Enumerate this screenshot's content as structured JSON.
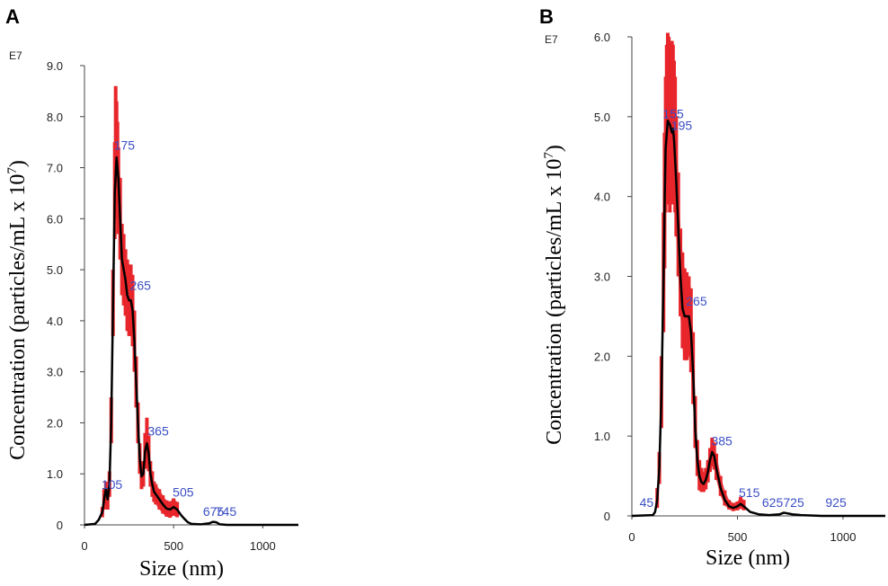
{
  "chart_data": [
    {
      "type": "line",
      "panel_label": "A",
      "exponent_label": "E7",
      "xlabel": "Size (nm)",
      "ylabel": "Concentration (particles/mL x 10",
      "ylabel_sup": "7",
      "ylabel_close": ")",
      "xlim": [
        0,
        1200
      ],
      "ylim": [
        0,
        9.0
      ],
      "xticks": [
        0,
        500,
        1000
      ],
      "xtick_labels": [
        "0",
        "500",
        "1000"
      ],
      "yticks": [
        0,
        1,
        2,
        3,
        4,
        5,
        6,
        7,
        8,
        9
      ],
      "ytick_labels": [
        "0",
        "1.0",
        "2.0",
        "3.0",
        "4.0",
        "5.0",
        "6.0",
        "7.0",
        "8.0",
        "9.0"
      ],
      "series": [
        {
          "name": "mean",
          "color": "#000000",
          "x": [
            0,
            60,
            80,
            100,
            110,
            120,
            130,
            140,
            150,
            160,
            170,
            180,
            190,
            200,
            210,
            220,
            230,
            240,
            250,
            260,
            270,
            280,
            290,
            300,
            310,
            320,
            330,
            340,
            350,
            360,
            370,
            380,
            390,
            400,
            420,
            440,
            460,
            480,
            500,
            520,
            540,
            560,
            580,
            600,
            650,
            700,
            720,
            740,
            760,
            800,
            1000,
            1200
          ],
          "y": [
            0,
            0.02,
            0.1,
            0.25,
            0.5,
            0.7,
            0.5,
            0.8,
            2.0,
            4.3,
            6.5,
            7.2,
            6.8,
            6.0,
            5.2,
            5.0,
            4.8,
            4.5,
            4.4,
            4.4,
            4.2,
            3.6,
            2.8,
            2.0,
            1.3,
            0.95,
            1.0,
            1.45,
            1.6,
            1.4,
            1.0,
            0.8,
            0.65,
            0.6,
            0.5,
            0.4,
            0.32,
            0.3,
            0.35,
            0.3,
            0.2,
            0.12,
            0.05,
            0.02,
            0.01,
            0.03,
            0.06,
            0.05,
            0.01,
            0,
            0,
            0
          ]
        },
        {
          "name": "error",
          "color": "#e8262a",
          "x": [
            100,
            110,
            120,
            130,
            140,
            150,
            160,
            170,
            175,
            180,
            185,
            190,
            200,
            210,
            220,
            230,
            240,
            250,
            260,
            270,
            280,
            290,
            300,
            310,
            320,
            330,
            340,
            350,
            360,
            370,
            380,
            390,
            400,
            420,
            440,
            460,
            480,
            500,
            520
          ],
          "lo": [
            0.15,
            0.3,
            0.4,
            0.3,
            0.55,
            1.6,
            3.7,
            5.6,
            6.2,
            6.3,
            6.0,
            5.7,
            5.2,
            4.5,
            4.3,
            4.1,
            3.8,
            3.7,
            3.7,
            3.5,
            3.0,
            2.3,
            1.6,
            1.0,
            0.7,
            0.75,
            1.1,
            1.2,
            1.05,
            0.75,
            0.55,
            0.45,
            0.4,
            0.3,
            0.22,
            0.16,
            0.14,
            0.18,
            0.15
          ],
          "hi": [
            0.35,
            0.7,
            0.85,
            0.7,
            1.05,
            2.5,
            5.0,
            7.5,
            8.6,
            8.3,
            7.9,
            7.4,
            6.8,
            5.9,
            5.7,
            5.4,
            5.2,
            5.1,
            5.1,
            4.9,
            4.2,
            3.3,
            2.4,
            1.6,
            1.2,
            1.25,
            1.8,
            2.1,
            1.75,
            1.25,
            1.05,
            0.85,
            0.8,
            0.7,
            0.58,
            0.48,
            0.46,
            0.52,
            0.45
          ]
        }
      ],
      "peak_labels": [
        {
          "text": "105",
          "x": 105,
          "y": 0.65
        },
        {
          "text": "175",
          "x": 175,
          "y": 7.3
        },
        {
          "text": "265",
          "x": 265,
          "y": 4.55
        },
        {
          "text": "365",
          "x": 365,
          "y": 1.7
        },
        {
          "text": "505",
          "x": 505,
          "y": 0.5
        },
        {
          "text": "675",
          "x": 675,
          "y": 0.12
        },
        {
          "text": "745",
          "x": 745,
          "y": 0.12
        }
      ]
    },
    {
      "type": "line",
      "panel_label": "B",
      "exponent_label": "E7",
      "xlabel": "Size (nm)",
      "ylabel": "Concentration (particles/mL x 10",
      "ylabel_sup": "7",
      "ylabel_close": ")",
      "xlim": [
        0,
        1200
      ],
      "ylim": [
        0,
        6.0
      ],
      "xticks": [
        0,
        500,
        1000
      ],
      "xtick_labels": [
        "0",
        "500",
        "1000"
      ],
      "yticks": [
        0,
        1,
        2,
        3,
        4,
        5,
        6
      ],
      "ytick_labels": [
        "0",
        "1.0",
        "2.0",
        "3.0",
        "4.0",
        "5.0",
        "6.0"
      ],
      "series": [
        {
          "name": "mean",
          "color": "#000000",
          "x": [
            0,
            100,
            110,
            120,
            130,
            140,
            150,
            155,
            160,
            170,
            180,
            190,
            195,
            200,
            210,
            220,
            230,
            240,
            250,
            260,
            270,
            280,
            290,
            300,
            310,
            320,
            330,
            340,
            350,
            360,
            370,
            380,
            390,
            400,
            420,
            440,
            460,
            480,
            500,
            515,
            530,
            560,
            600,
            650,
            700,
            720,
            760,
            800,
            900,
            1000,
            1200
          ],
          "y": [
            0,
            0.01,
            0.05,
            0.2,
            0.6,
            1.5,
            3.0,
            3.9,
            4.6,
            4.95,
            4.9,
            4.8,
            4.85,
            4.7,
            4.2,
            3.6,
            3.0,
            2.6,
            2.5,
            2.5,
            2.5,
            2.3,
            1.8,
            1.1,
            0.7,
            0.5,
            0.42,
            0.4,
            0.45,
            0.55,
            0.7,
            0.8,
            0.75,
            0.6,
            0.35,
            0.2,
            0.12,
            0.1,
            0.12,
            0.15,
            0.12,
            0.05,
            0.02,
            0.01,
            0.02,
            0.04,
            0.02,
            0.01,
            0,
            0,
            0
          ]
        },
        {
          "name": "error",
          "color": "#e8262a",
          "x": [
            120,
            130,
            140,
            150,
            155,
            160,
            165,
            170,
            175,
            180,
            185,
            190,
            195,
            200,
            205,
            210,
            220,
            230,
            240,
            250,
            260,
            270,
            280,
            290,
            300,
            310,
            320,
            330,
            340,
            350,
            360,
            370,
            380,
            390,
            400,
            420,
            440,
            460,
            480,
            500,
            515,
            530
          ],
          "lo": [
            0.1,
            0.4,
            1.1,
            2.3,
            3.1,
            3.8,
            4.0,
            4.1,
            3.9,
            3.8,
            3.9,
            4.0,
            4.0,
            3.9,
            3.8,
            3.5,
            3.0,
            2.5,
            2.1,
            1.95,
            1.95,
            2.0,
            1.8,
            1.4,
            0.85,
            0.5,
            0.32,
            0.3,
            0.3,
            0.33,
            0.42,
            0.55,
            0.62,
            0.58,
            0.45,
            0.25,
            0.13,
            0.08,
            0.06,
            0.07,
            0.09,
            0.07
          ],
          "hi": [
            0.35,
            0.8,
            2.0,
            3.8,
            4.8,
            5.5,
            5.9,
            6.05,
            6.0,
            5.8,
            5.9,
            5.95,
            5.9,
            5.7,
            5.5,
            5.0,
            4.3,
            3.6,
            3.3,
            3.1,
            3.05,
            3.0,
            2.85,
            2.3,
            1.5,
            0.95,
            0.7,
            0.6,
            0.55,
            0.6,
            0.7,
            0.85,
            0.98,
            0.92,
            0.78,
            0.5,
            0.32,
            0.2,
            0.16,
            0.18,
            0.24,
            0.2
          ]
        }
      ],
      "peak_labels": [
        {
          "text": "45",
          "x": 45,
          "y": 0.08
        },
        {
          "text": "155",
          "x": 155,
          "y": 4.95
        },
        {
          "text": "195",
          "x": 195,
          "y": 4.8
        },
        {
          "text": "265",
          "x": 265,
          "y": 2.6
        },
        {
          "text": "385",
          "x": 385,
          "y": 0.85
        },
        {
          "text": "515",
          "x": 515,
          "y": 0.2
        },
        {
          "text": "625",
          "x": 625,
          "y": 0.08
        },
        {
          "text": "725",
          "x": 725,
          "y": 0.08
        },
        {
          "text": "925",
          "x": 925,
          "y": 0.08
        }
      ]
    }
  ]
}
